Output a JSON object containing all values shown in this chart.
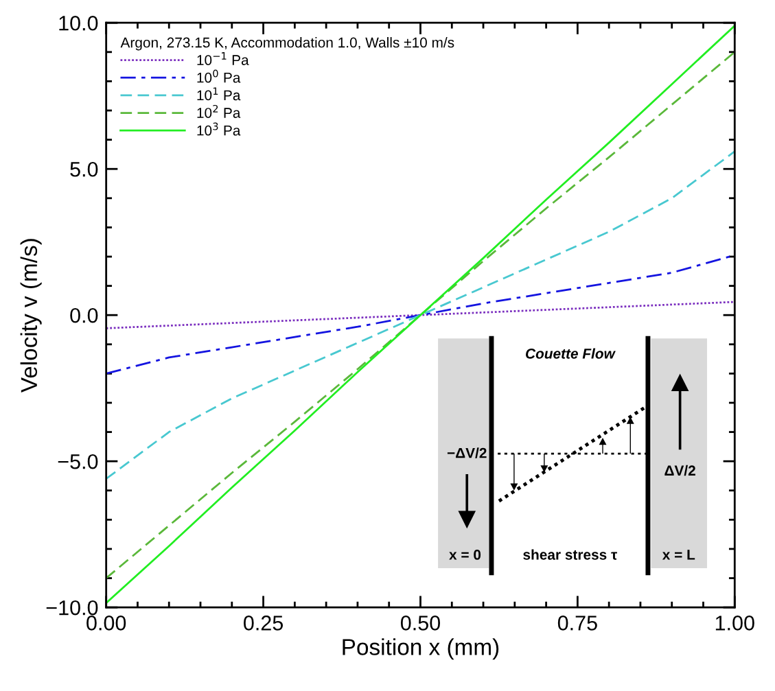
{
  "chart_data": {
    "type": "line",
    "xlabel": "Position x (mm)",
    "ylabel": "Velocity v (m/s)",
    "legend_title": "Argon, 273.15 K, Accommodation 1.0, Walls ±10 m/s",
    "legend": "top left",
    "grid": false,
    "marker": "none",
    "x": [
      0,
      0.1,
      0.2,
      0.3,
      0.4,
      0.5,
      0.6,
      0.7,
      0.8,
      0.9,
      1.0
    ],
    "series": [
      {
        "name": "10$^{−1}$ Pa",
        "color": "#7b2fbf",
        "line_style": "dotted",
        "values": [
          -0.45,
          -0.36,
          -0.27,
          -0.18,
          -0.09,
          0,
          0.09,
          0.18,
          0.27,
          0.36,
          0.45
        ]
      },
      {
        "name": "10$^{0}$ Pa",
        "color": "#1414e0",
        "line_style": "dashdot",
        "values": [
          -2.0,
          -1.45,
          -1.1,
          -0.75,
          -0.4,
          0,
          0.4,
          0.75,
          1.1,
          1.45,
          2.05
        ]
      },
      {
        "name": "10$^{1}$ Pa",
        "color": "#48c8d0",
        "line_style": "dashed",
        "values": [
          -5.6,
          -4.0,
          -2.85,
          -1.9,
          -0.95,
          0,
          0.95,
          1.9,
          2.85,
          4.0,
          5.6
        ]
      },
      {
        "name": "10$^{2}$ Pa",
        "color": "#5ab83a",
        "line_style": "dashed",
        "values": [
          -9.0,
          -7.2,
          -5.4,
          -3.65,
          -1.85,
          0,
          1.85,
          3.65,
          5.4,
          7.2,
          9.0
        ]
      },
      {
        "name": "10$^{3}$ Pa",
        "color": "#22ee22",
        "line_style": "solid",
        "values": [
          -9.85,
          -7.9,
          -5.9,
          -3.95,
          -1.95,
          0,
          1.95,
          3.95,
          5.9,
          7.9,
          9.9
        ]
      }
    ],
    "xlim": [
      0,
      1
    ],
    "xticks": [
      {
        "value": 0,
        "label": "0.00"
      },
      {
        "value": 0.25,
        "label": "0.25"
      },
      {
        "value": 0.5,
        "label": "0.50"
      },
      {
        "value": 0.75,
        "label": "0.75"
      },
      {
        "value": 1,
        "label": "1.00"
      }
    ],
    "ylim": [
      -10,
      10
    ],
    "yticks": [
      {
        "value": -10,
        "label": "−10.0"
      },
      {
        "value": -5,
        "label": "−5.0"
      },
      {
        "value": 0,
        "label": "0.0"
      },
      {
        "value": 5,
        "label": "5.0"
      },
      {
        "value": 10,
        "label": "10.0"
      }
    ],
    "annotations": [
      "Couette Flow",
      "−ΔV/2",
      "ΔV/2",
      "x = 0",
      "shear stress τ",
      "x = L"
    ]
  }
}
